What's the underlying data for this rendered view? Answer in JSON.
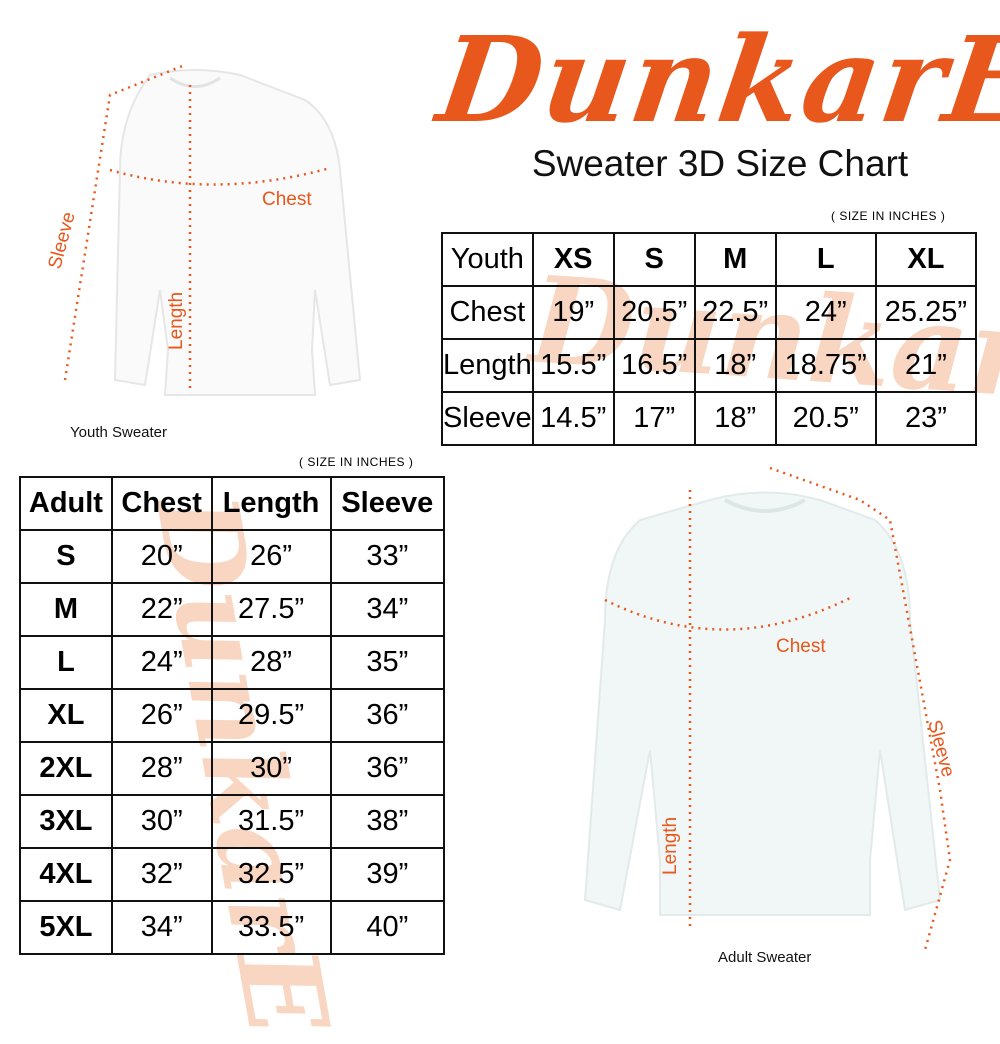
{
  "brand": {
    "logo_text": "DunkarE",
    "color": "#e8571c"
  },
  "title": "Sweater 3D Size Chart",
  "youth": {
    "units_note": "( SIZE IN INCHES )",
    "headers": [
      "Youth",
      "XS",
      "S",
      "M",
      "L",
      "XL"
    ],
    "rows": [
      {
        "label": "Chest",
        "values": [
          "19”",
          "20.5”",
          "22.5”",
          "24”",
          "25.25”"
        ]
      },
      {
        "label": "Length",
        "values": [
          "15.5”",
          "16.5”",
          "18”",
          "18.75”",
          "21”"
        ]
      },
      {
        "label": "Sleeve",
        "values": [
          "14.5”",
          "17”",
          "18”",
          "20.5”",
          "23”"
        ]
      }
    ],
    "image": {
      "caption": "Youth Sweater",
      "labels": {
        "chest": "Chest",
        "length": "Length",
        "sleeve": "Sleeve"
      }
    }
  },
  "adult": {
    "units_note": "( SIZE IN INCHES )",
    "headers": [
      "Adult",
      "Chest",
      "Length",
      "Sleeve"
    ],
    "rows": [
      {
        "size": "S",
        "values": [
          "20”",
          "26”",
          "33”"
        ]
      },
      {
        "size": "M",
        "values": [
          "22”",
          "27.5”",
          "34”"
        ]
      },
      {
        "size": "L",
        "values": [
          "24”",
          "28”",
          "35”"
        ]
      },
      {
        "size": "XL",
        "values": [
          "26”",
          "29.5”",
          "36”"
        ]
      },
      {
        "size": "2XL",
        "values": [
          "28”",
          "30”",
          "36”"
        ]
      },
      {
        "size": "3XL",
        "values": [
          "30”",
          "31.5”",
          "38”"
        ]
      },
      {
        "size": "4XL",
        "values": [
          "32”",
          "32.5”",
          "39”"
        ]
      },
      {
        "size": "5XL",
        "values": [
          "34”",
          "33.5”",
          "40”"
        ]
      }
    ],
    "image": {
      "caption": "Adult Sweater",
      "labels": {
        "chest": "Chest",
        "length": "Length",
        "sleeve": "Sleeve"
      }
    }
  }
}
